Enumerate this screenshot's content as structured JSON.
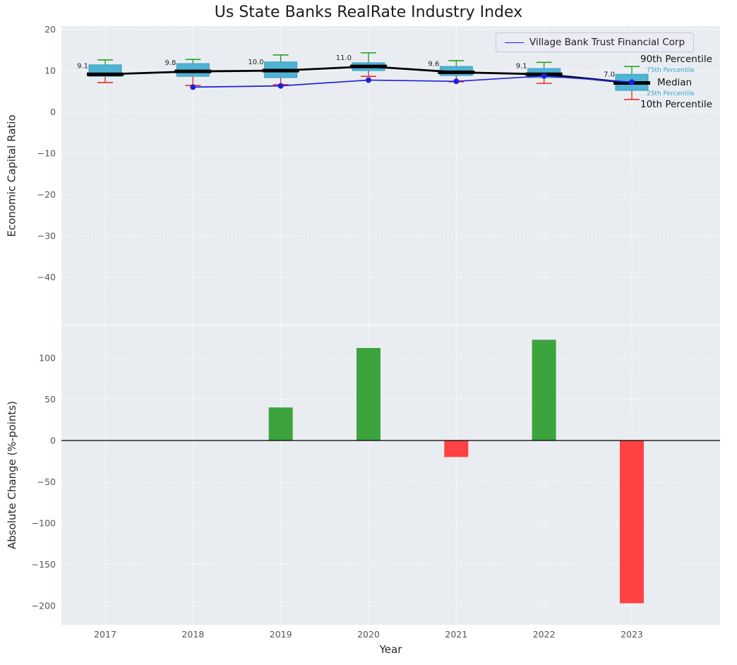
{
  "title": "Us State Banks RealRate Industry Index",
  "legend": {
    "label": "Village Bank Trust Financial Corp"
  },
  "annotations": {
    "p90": "90th Percentile",
    "p75": "75th Percentile",
    "median": "Median",
    "p25": "25th Percentile",
    "p10": "10th Percentile"
  },
  "colors": {
    "axes_bg": "#e9edf1",
    "grid": "#ffffff",
    "box_fill": "#4fb3d4",
    "box_edge": "#3a9fc2",
    "median_line": "#000000",
    "company_line": "#2020dd",
    "whisker_top": "#2ca02c",
    "whisker_bottom": "#e62e2e",
    "bar_positive": "#3da33d",
    "bar_negative": "#ff4242",
    "tick_label": "#555555",
    "text": "#262626",
    "percentile_label_small": "#3aa5c9"
  },
  "chart_data": [
    {
      "type": "boxplot+line",
      "ylabel": "Economic Capital Ratio",
      "ylim": [
        -51.5,
        20.8
      ],
      "legend_position": "upper right",
      "grid": true,
      "categories": [
        2017,
        2018,
        2019,
        2020,
        2021,
        2022,
        2023
      ],
      "yticks": [
        {
          "v": 20,
          "label": "20"
        },
        {
          "v": 10,
          "label": "10"
        },
        {
          "v": 0,
          "label": "0"
        },
        {
          "v": -10,
          "label": "−10"
        },
        {
          "v": -20,
          "label": "−20"
        },
        {
          "v": -30,
          "label": "−30"
        },
        {
          "v": -40,
          "label": "−40"
        }
      ],
      "boxes": [
        {
          "year": 2017,
          "p10": 7.1,
          "p25": 8.6,
          "median": 9.1,
          "p75": 11.4,
          "p90": 12.6
        },
        {
          "year": 2018,
          "p10": 6.4,
          "p25": 8.6,
          "median": 9.8,
          "p75": 11.7,
          "p90": 12.7
        },
        {
          "year": 2019,
          "p10": 6.6,
          "p25": 8.3,
          "median": 10.0,
          "p75": 12.1,
          "p90": 13.8
        },
        {
          "year": 2020,
          "p10": 8.6,
          "p25": 10.0,
          "median": 11.0,
          "p75": 11.9,
          "p90": 14.3
        },
        {
          "year": 2021,
          "p10": 7.3,
          "p25": 8.8,
          "median": 9.6,
          "p75": 11.0,
          "p90": 12.4
        },
        {
          "year": 2022,
          "p10": 6.9,
          "p25": 8.3,
          "median": 9.1,
          "p75": 10.5,
          "p90": 12.0
        },
        {
          "year": 2023,
          "p10": 3.0,
          "p25": 5.2,
          "median": 7.0,
          "p75": 9.1,
          "p90": 11.0
        }
      ],
      "median_labels": [
        "9.1",
        "9.8",
        "10.0",
        "11.0",
        "9.6",
        "9.1",
        "7.0"
      ],
      "series": [
        {
          "name": "Village Bank Trust Financial Corp",
          "values": [
            null,
            6.0,
            6.3,
            7.7,
            7.4,
            8.7,
            7.2
          ]
        }
      ]
    },
    {
      "type": "bar",
      "ylabel": "Absolute Change (%-points)",
      "xlabel": "Year",
      "ylim": [
        -223,
        140
      ],
      "grid": true,
      "categories": [
        2017,
        2018,
        2019,
        2020,
        2021,
        2022,
        2023
      ],
      "xticklabels": [
        "2017",
        "2018",
        "2019",
        "2020",
        "2021",
        "2022",
        "2023"
      ],
      "yticks": [
        {
          "v": 100,
          "label": "100"
        },
        {
          "v": 50,
          "label": "50"
        },
        {
          "v": 0,
          "label": "0"
        },
        {
          "v": -50,
          "label": "−50"
        },
        {
          "v": -100,
          "label": "−100"
        },
        {
          "v": -150,
          "label": "−150"
        },
        {
          "v": -200,
          "label": "−200"
        }
      ],
      "values": [
        0,
        0,
        40,
        112,
        -20,
        122,
        -197
      ]
    }
  ]
}
